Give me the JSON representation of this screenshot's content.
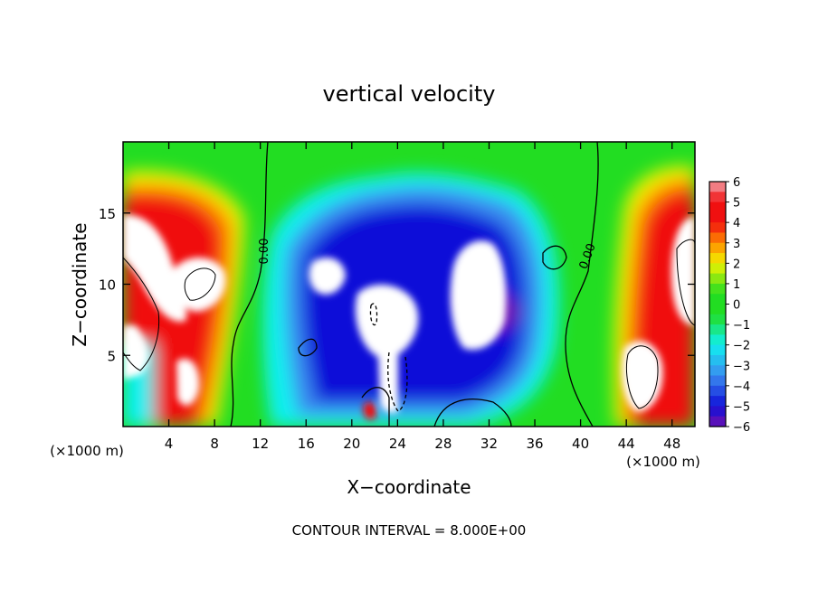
{
  "chart_data": {
    "type": "heatmap",
    "title": "vertical velocity",
    "xlabel": "X−coordinate",
    "ylabel": "Z−coordinate",
    "x_unit_left": "(×1000 m)",
    "x_unit_right": "(×1000 m)",
    "footer": "CONTOUR INTERVAL = 8.000E+00",
    "xlim": [
      0,
      50
    ],
    "ylim": [
      0,
      20
    ],
    "x_ticks": [
      "4",
      "8",
      "12",
      "16",
      "20",
      "24",
      "28",
      "32",
      "36",
      "40",
      "44",
      "48"
    ],
    "y_ticks": [
      "5",
      "10",
      "15"
    ],
    "colorbar": {
      "range": [
        -6,
        6
      ],
      "labels": [
        "6",
        "5",
        "4",
        "3",
        "2",
        "1",
        "0",
        "−1",
        "−2",
        "−3",
        "−4",
        "−5",
        "−6"
      ]
    },
    "contour_labels": [
      "0.00",
      "0.00"
    ],
    "colors": {
      "magenta": "#f2a0a8",
      "red": "#f01010",
      "orange": "#ff8a00",
      "yellow": "#f2f200",
      "green": "#22dd22",
      "cyan": "#10f0f0",
      "blue": "#1010d8",
      "purple": "#7010b0"
    }
  }
}
